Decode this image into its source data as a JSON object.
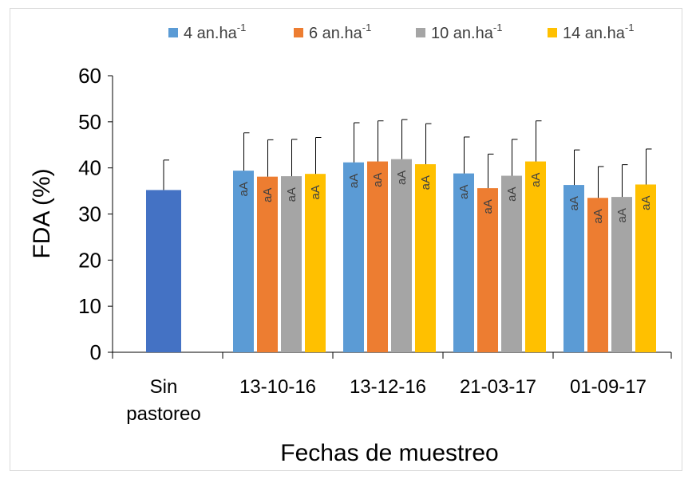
{
  "chart_data": {
    "type": "bar",
    "xlabel": "Fechas de muestreo",
    "ylabel": "FDA (%)",
    "ylim": [
      0,
      60
    ],
    "yticks": [
      0,
      10,
      20,
      30,
      40,
      50,
      60
    ],
    "legend_position": "top",
    "control": {
      "category": [
        "Sin",
        "pastoreo"
      ],
      "value": 35.2,
      "error": 6.5,
      "color": "#4472C4"
    },
    "categories": [
      "13-10-16",
      "13-12-16",
      "21-03-17",
      "01-09-17"
    ],
    "series": [
      {
        "name": "4 an.ha",
        "sup": "-1",
        "color": "#5B9BD5",
        "values": [
          39.4,
          41.2,
          38.8,
          36.3
        ],
        "errors": [
          8.2,
          8.6,
          7.9,
          7.6
        ],
        "labels": [
          "aA",
          "aA",
          "aA",
          "aA"
        ]
      },
      {
        "name": "6 an.ha",
        "sup": "-1",
        "color": "#ED7D31",
        "values": [
          38.1,
          41.4,
          35.6,
          33.5
        ],
        "errors": [
          8.0,
          8.8,
          7.4,
          6.8
        ],
        "labels": [
          "aA",
          "aA",
          "aA",
          "aA"
        ]
      },
      {
        "name": "10 an.ha",
        "sup": "-1",
        "color": "#A5A5A5",
        "values": [
          38.2,
          41.9,
          38.3,
          33.7
        ],
        "errors": [
          8.0,
          8.6,
          7.9,
          7.0
        ],
        "labels": [
          "aA",
          "aA",
          "aA",
          "aA"
        ]
      },
      {
        "name": "14 an.ha",
        "sup": "-1",
        "color": "#FFC000",
        "values": [
          38.7,
          40.8,
          41.4,
          36.4
        ],
        "errors": [
          7.9,
          8.8,
          8.8,
          7.7
        ],
        "labels": [
          "aA",
          "aA",
          "aA",
          "aA"
        ]
      }
    ]
  }
}
